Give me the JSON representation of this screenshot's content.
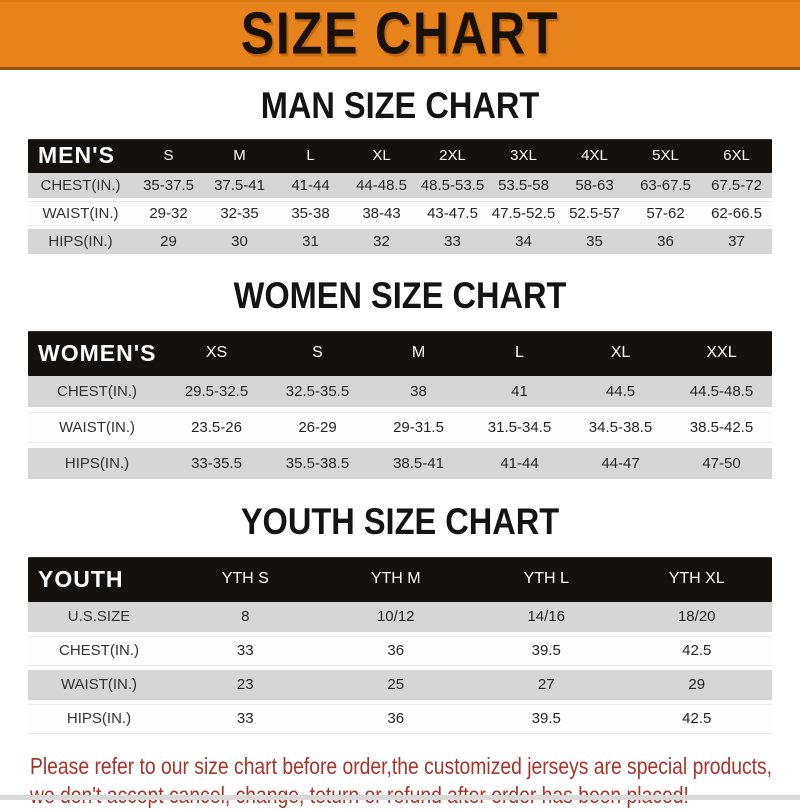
{
  "banner": {
    "title": "SIZE CHART"
  },
  "colors": {
    "banner_bg": "#E8821A",
    "bar_bg": "#15110E",
    "row_gray": "#D6D6D6",
    "red_text": "#A5352C"
  },
  "sections": [
    {
      "id": "men",
      "heading": "MAN SIZE CHART",
      "table": {
        "label": "MEN'S",
        "sizes": [
          "S",
          "M",
          "L",
          "XL",
          "2XL",
          "3XL",
          "4XL",
          "5XL",
          "6XL"
        ],
        "rows": [
          {
            "label": "CHEST(IN.)",
            "values": [
              "35-37.5",
              "37.5-41",
              "41-44",
              "44-48.5",
              "48.5-53.5",
              "53.5-58",
              "58-63",
              "63-67.5",
              "67.5-72"
            ]
          },
          {
            "label": "WAIST(IN.)",
            "values": [
              "29-32",
              "32-35",
              "35-38",
              "38-43",
              "43-47.5",
              "47.5-52.5",
              "52.5-57",
              "57-62",
              "62-66.5"
            ]
          },
          {
            "label": "HIPS(IN.)",
            "values": [
              "29",
              "30",
              "31",
              "32",
              "33",
              "34",
              "35",
              "36",
              "37"
            ]
          }
        ]
      }
    },
    {
      "id": "women",
      "heading": "WOMEN SIZE CHART",
      "table": {
        "label": "WOMEN'S",
        "sizes": [
          "XS",
          "S",
          "M",
          "L",
          "XL",
          "XXL"
        ],
        "rows": [
          {
            "label": "CHEST(IN.)",
            "values": [
              "29.5-32.5",
              "32.5-35.5",
              "38",
              "41",
              "44.5",
              "44.5-48.5"
            ]
          },
          {
            "label": "WAIST(IN.)",
            "values": [
              "23.5-26",
              "26-29",
              "29-31.5",
              "31.5-34.5",
              "34.5-38.5",
              "38.5-42.5"
            ]
          },
          {
            "label": "HIPS(IN.)",
            "values": [
              "33-35.5",
              "35.5-38.5",
              "38.5-41",
              "41-44",
              "44-47",
              "47-50"
            ]
          }
        ]
      }
    },
    {
      "id": "youth",
      "heading": "YOUTH SIZE CHART",
      "table": {
        "label": "YOUTH",
        "sizes": [
          "YTH S",
          "YTH M",
          "YTH L",
          "YTH XL"
        ],
        "rows": [
          {
            "label": "U.S.SIZE",
            "values": [
              "8",
              "10/12",
              "14/16",
              "18/20"
            ]
          },
          {
            "label": "CHEST(IN.)",
            "values": [
              "33",
              "36",
              "39.5",
              "42.5"
            ]
          },
          {
            "label": "WAIST(IN.)",
            "values": [
              "23",
              "25",
              "27",
              "29"
            ]
          },
          {
            "label": "HIPS(IN.)",
            "values": [
              "33",
              "36",
              "39.5",
              "42.5"
            ]
          }
        ]
      }
    }
  ],
  "disclaimer": {
    "line1": "Please refer to our size chart before order,the customized jerseys are special products,",
    "line2": "we don't accept cancel, change, teturn or refund after order has been placed!"
  }
}
